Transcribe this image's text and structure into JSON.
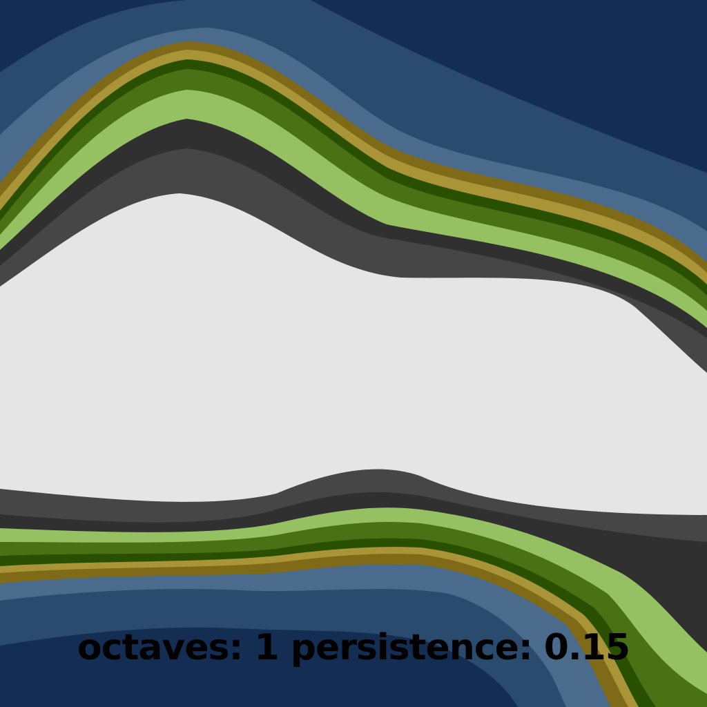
{
  "caption": {
    "octaves_label": "octaves:",
    "octaves_value": "1",
    "persistence_label": "persistence:",
    "persistence_value": "0.15"
  },
  "terrain": {
    "bands": [
      {
        "name": "deep-water",
        "color": "#132e52"
      },
      {
        "name": "water",
        "color": "#2b4b6e"
      },
      {
        "name": "shallow-water",
        "color": "#4a6b8c"
      },
      {
        "name": "sand-dark",
        "color": "#7f6a17"
      },
      {
        "name": "sand",
        "color": "#aa9438"
      },
      {
        "name": "forest-dark",
        "color": "#285000"
      },
      {
        "name": "forest",
        "color": "#4a7114"
      },
      {
        "name": "grass",
        "color": "#96c162"
      },
      {
        "name": "rock-dark",
        "color": "#303030"
      },
      {
        "name": "rock",
        "color": "#464646"
      },
      {
        "name": "snow",
        "color": "#e5e5e5"
      }
    ]
  }
}
